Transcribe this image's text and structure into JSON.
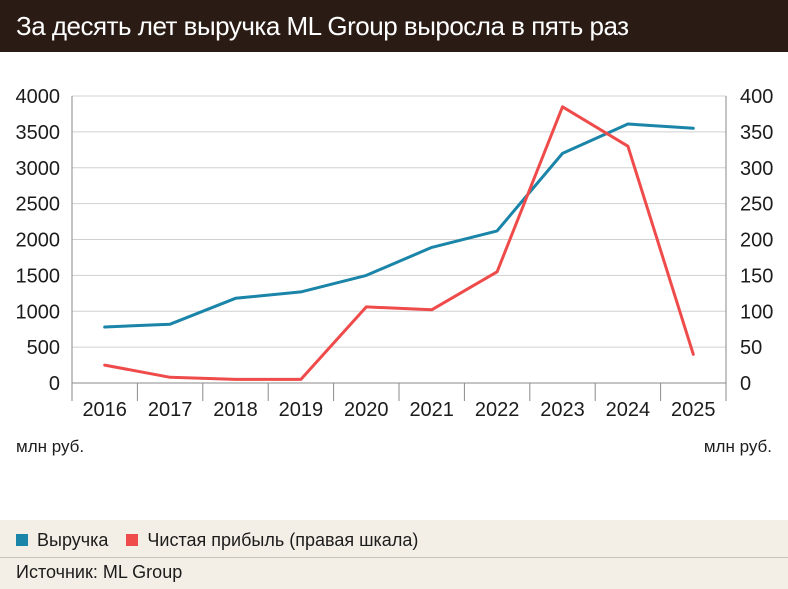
{
  "title": "За десять лет выручка ML Group выросла в пять раз",
  "left_unit": "млн руб.",
  "right_unit": "млн руб.",
  "legend": [
    {
      "label": "Выручка",
      "color": "#1a85a8"
    },
    {
      "label": "Чистая прибыль (правая шкала)",
      "color": "#ef4b4b"
    }
  ],
  "source": "Источник: ML Group",
  "chart_data": {
    "type": "line",
    "title": "За десять лет выручка ML Group выросла в пять раз",
    "categories": [
      "2016",
      "2017",
      "2018",
      "2019",
      "2020",
      "2021",
      "2022",
      "2023",
      "2024",
      "2025"
    ],
    "y_left": {
      "label": "млн руб.",
      "min": 0,
      "max": 4000,
      "ticks": [
        0,
        500,
        1000,
        1500,
        2000,
        2500,
        3000,
        3500,
        4000
      ]
    },
    "y_right": {
      "label": "млн руб.",
      "min": 0,
      "max": 400,
      "ticks": [
        0,
        50,
        100,
        150,
        200,
        250,
        300,
        350,
        400
      ]
    },
    "series": [
      {
        "name": "Выручка",
        "axis": "left",
        "color": "#1a85a8",
        "values": [
          780,
          820,
          1180,
          1270,
          1500,
          1890,
          2120,
          3200,
          3610,
          3550
        ]
      },
      {
        "name": "Чистая прибыль (правая шкала)",
        "axis": "right",
        "color": "#ef4b4b",
        "values": [
          25,
          8,
          5,
          5,
          106,
          102,
          155,
          385,
          330,
          40
        ]
      }
    ],
    "grid": true,
    "legend_position": "bottom-left"
  }
}
